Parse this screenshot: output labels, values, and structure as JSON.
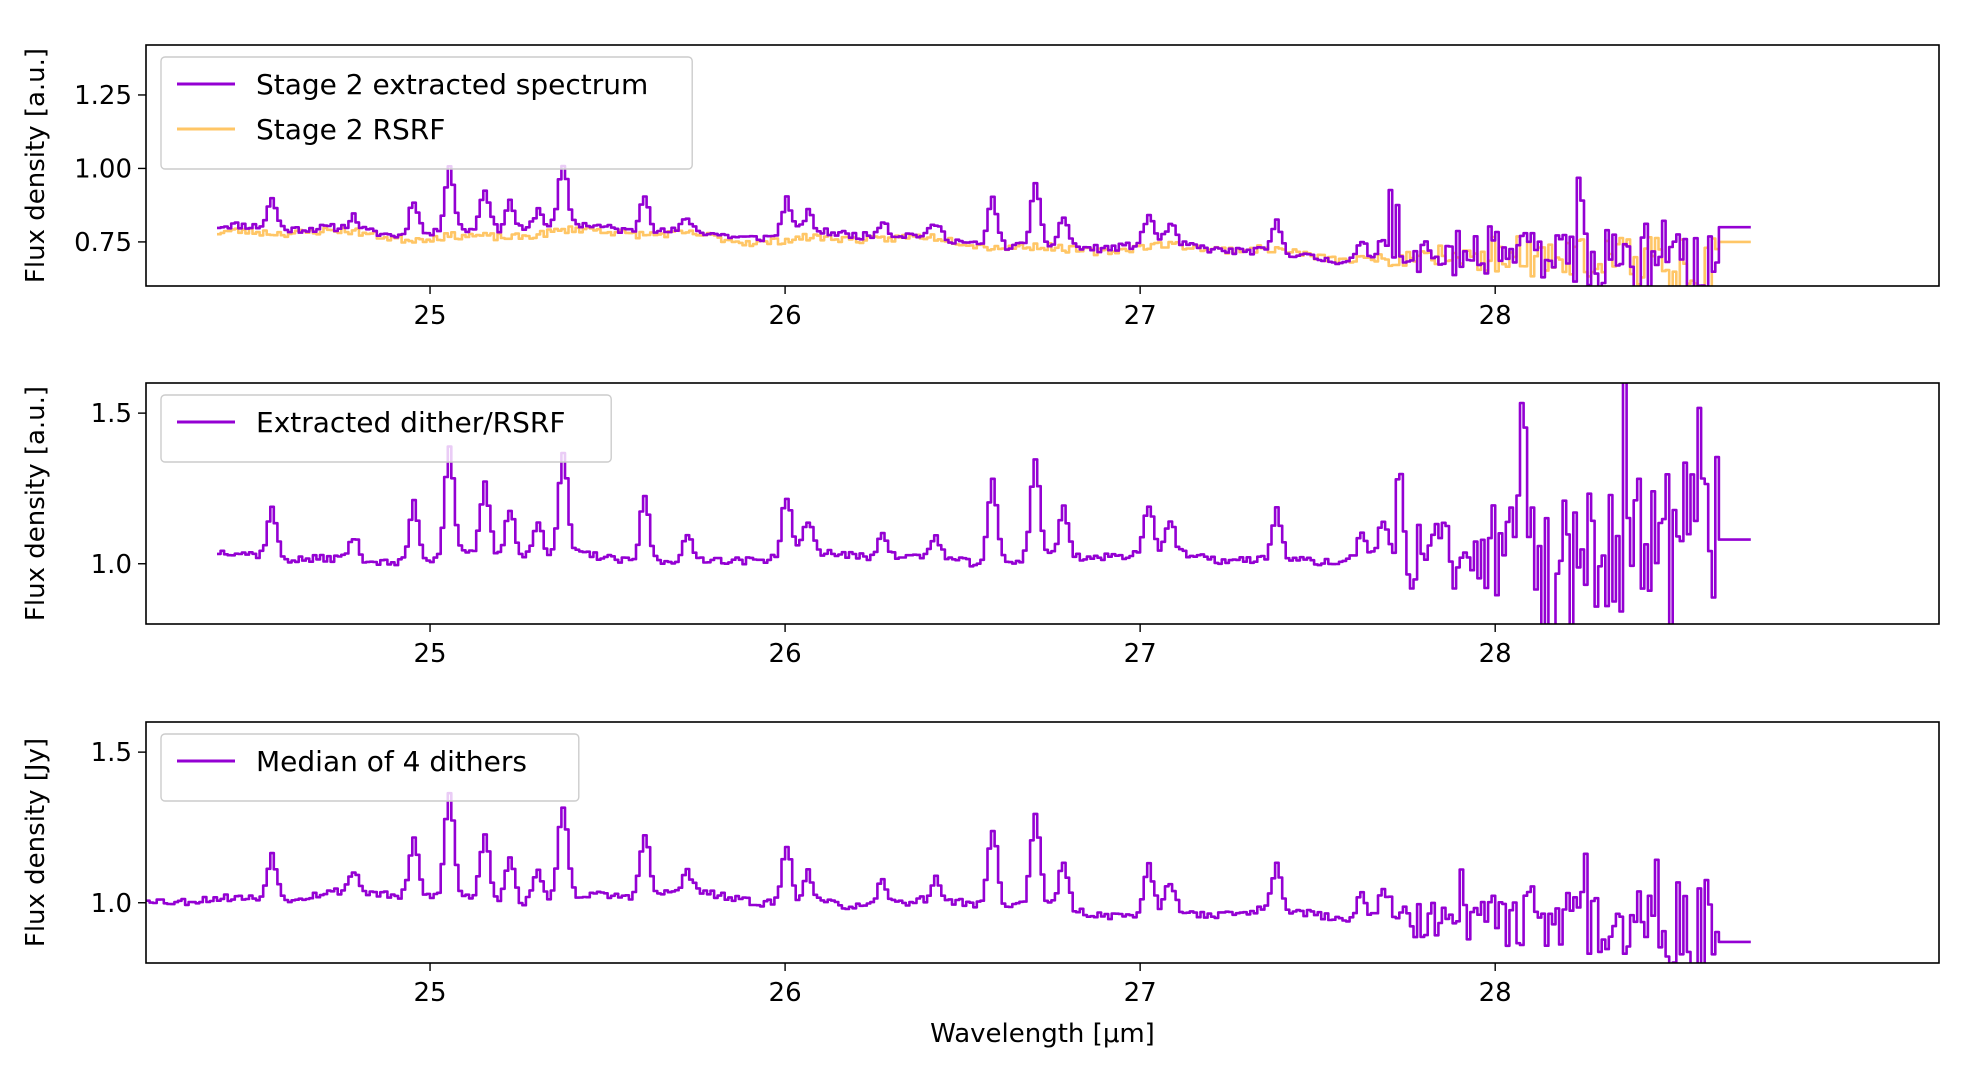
{
  "chart_data": [
    {
      "type": "line",
      "panel": "top",
      "ylabel": "Flux density [a.u.]",
      "xlabel": "",
      "xlim": [
        24.2,
        29.25
      ],
      "ylim": [
        0.6,
        1.42
      ],
      "xticks": [
        {
          "value": 25,
          "label": "25"
        },
        {
          "value": 26,
          "label": "26"
        },
        {
          "value": 27,
          "label": "27"
        },
        {
          "value": 28,
          "label": "28"
        }
      ],
      "yticks": [
        {
          "value": 0.75,
          "label": "0.75"
        },
        {
          "value": 1.0,
          "label": "1.00"
        },
        {
          "value": 1.25,
          "label": "1.25"
        }
      ],
      "legend_position": "top-left",
      "series": [
        {
          "name": "Stage 2 extracted spectrum",
          "color": "#9400D3",
          "base": 0.79,
          "peakScale": 0.22,
          "drop": 0.1,
          "noiseGrowth": 0.22,
          "startX": 24.4,
          "tailValue": 0.8,
          "seed": 11
        },
        {
          "name": "Stage 2 RSRF",
          "color": "#FFB840",
          "base": 0.775,
          "peakScale": 0.0,
          "drop": 0.08,
          "noiseGrowth": 0.16,
          "startX": 24.4,
          "tailValue": 0.75,
          "seed": 23
        }
      ],
      "drawOrder": [
        1,
        0
      ]
    },
    {
      "type": "line",
      "panel": "middle",
      "ylabel": "Flux density [a.u.]",
      "xlabel": "",
      "xlim": [
        24.2,
        29.25
      ],
      "ylim": [
        0.8,
        1.6
      ],
      "xticks": [
        {
          "value": 25,
          "label": "25"
        },
        {
          "value": 26,
          "label": "26"
        },
        {
          "value": 27,
          "label": "27"
        },
        {
          "value": 28,
          "label": "28"
        }
      ],
      "yticks": [
        {
          "value": 1.0,
          "label": "1.0"
        },
        {
          "value": 1.5,
          "label": "1.5"
        }
      ],
      "legend_position": "top-left",
      "series": [
        {
          "name": "Extracted dither/RSRF",
          "color": "#9400D3",
          "base": 1.02,
          "peakScale": 0.36,
          "drop": 0.0,
          "noiseGrowth": 0.55,
          "startX": 24.4,
          "tailValue": 1.08,
          "seed": 37
        }
      ],
      "drawOrder": [
        0
      ]
    },
    {
      "type": "line",
      "panel": "bottom",
      "ylabel": "Flux density [Jy]",
      "xlabel": "Wavelength [μm]",
      "xlim": [
        24.2,
        29.25
      ],
      "ylim": [
        0.8,
        1.6
      ],
      "xticks": [
        {
          "value": 25,
          "label": "25"
        },
        {
          "value": 26,
          "label": "26"
        },
        {
          "value": 27,
          "label": "27"
        },
        {
          "value": 28,
          "label": "28"
        }
      ],
      "yticks": [
        {
          "value": 1.0,
          "label": "1.0"
        },
        {
          "value": 1.5,
          "label": "1.5"
        }
      ],
      "legend_position": "top-left",
      "series": [
        {
          "name": "Median of 4 dithers",
          "color": "#9400D3",
          "base": 1.02,
          "peakScale": 0.34,
          "drop": 0.08,
          "noiseGrowth": 0.25,
          "startX": 24.2,
          "tailValue": 0.87,
          "seed": 53
        }
      ],
      "drawOrder": [
        0
      ]
    }
  ],
  "emission_features": [
    {
      "x": 24.55,
      "h": 0.45
    },
    {
      "x": 24.78,
      "h": 0.2
    },
    {
      "x": 24.95,
      "h": 0.55
    },
    {
      "x": 25.05,
      "h": 1.0
    },
    {
      "x": 25.15,
      "h": 0.65
    },
    {
      "x": 25.22,
      "h": 0.45
    },
    {
      "x": 25.3,
      "h": 0.3
    },
    {
      "x": 25.37,
      "h": 0.9
    },
    {
      "x": 25.6,
      "h": 0.6
    },
    {
      "x": 25.72,
      "h": 0.2
    },
    {
      "x": 26.0,
      "h": 0.55
    },
    {
      "x": 26.06,
      "h": 0.3
    },
    {
      "x": 26.27,
      "h": 0.25
    },
    {
      "x": 26.42,
      "h": 0.2
    },
    {
      "x": 26.58,
      "h": 0.75
    },
    {
      "x": 26.7,
      "h": 0.9
    },
    {
      "x": 26.78,
      "h": 0.45
    },
    {
      "x": 27.02,
      "h": 0.45
    },
    {
      "x": 27.08,
      "h": 0.3
    },
    {
      "x": 27.38,
      "h": 0.45
    },
    {
      "x": 27.62,
      "h": 0.25
    },
    {
      "x": 27.68,
      "h": 0.3
    }
  ]
}
